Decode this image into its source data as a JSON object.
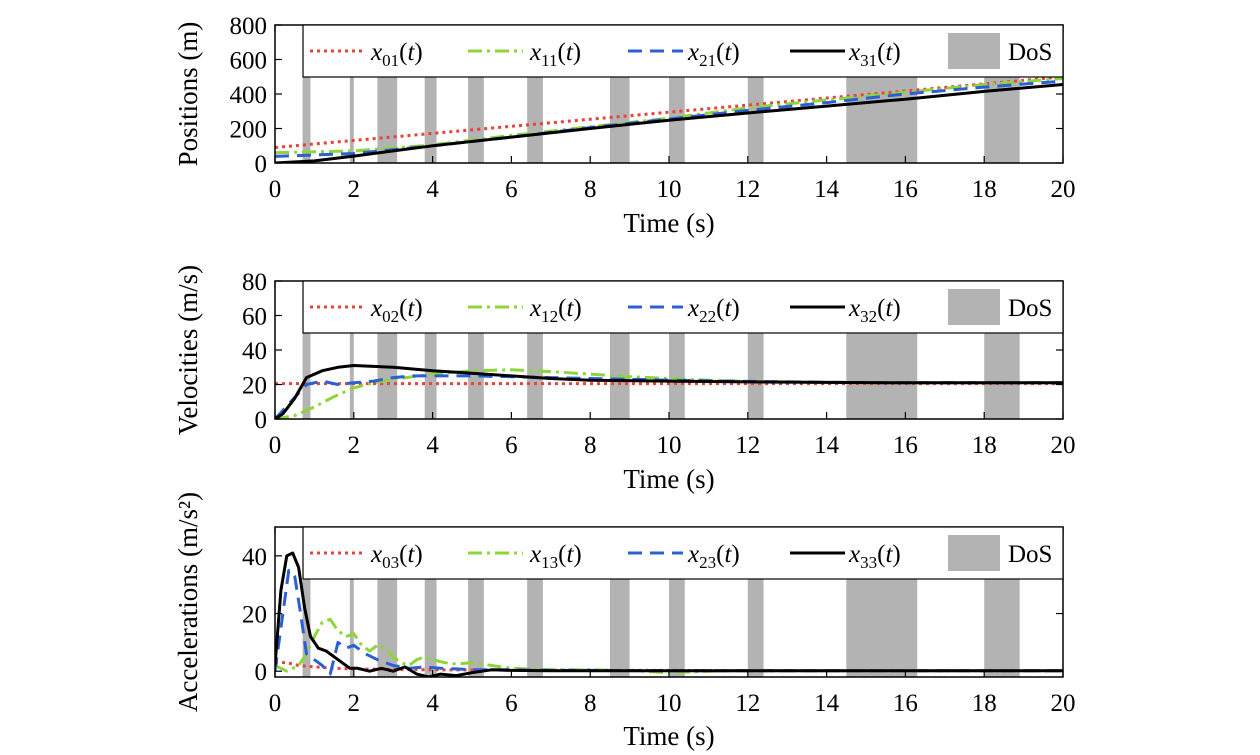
{
  "colors": {
    "x0": "#e8423c",
    "x1": "#8fd43a",
    "x2": "#2a5fd6",
    "x3": "#000000",
    "dos": "#b3b3b3"
  },
  "chart_data": [
    {
      "type": "line",
      "xlabel": "Time (s)",
      "ylabel": "Positions (m)",
      "xlim": [
        0,
        20
      ],
      "ylim": [
        0,
        800
      ],
      "xticks": [
        0,
        2,
        4,
        6,
        8,
        10,
        12,
        14,
        16,
        18,
        20
      ],
      "yticks": [
        0,
        200,
        400,
        600,
        800
      ],
      "dos_intervals": [
        [
          0.7,
          0.9
        ],
        [
          1.9,
          2.0
        ],
        [
          2.6,
          3.1
        ],
        [
          3.8,
          4.1
        ],
        [
          4.9,
          5.3
        ],
        [
          6.4,
          6.8
        ],
        [
          8.5,
          9.0
        ],
        [
          10.0,
          10.4
        ],
        [
          12.0,
          12.4
        ],
        [
          14.5,
          16.3
        ],
        [
          18.0,
          18.9
        ]
      ],
      "legend": [
        "x01(t)",
        "x11(t)",
        "x21(t)",
        "x31(t)",
        "DoS"
      ],
      "series": [
        {
          "name": "x01(t)",
          "x": [
            0,
            20
          ],
          "y": [
            90,
            500
          ]
        },
        {
          "name": "x11(t)",
          "x": [
            0,
            2,
            4,
            6,
            8,
            10,
            12,
            14,
            16,
            18,
            20
          ],
          "y": [
            60,
            70,
            105,
            160,
            210,
            260,
            320,
            365,
            410,
            455,
            490
          ]
        },
        {
          "name": "x21(t)",
          "x": [
            0,
            2,
            4,
            6,
            8,
            10,
            12,
            14,
            16,
            18,
            20
          ],
          "y": [
            38,
            55,
            100,
            150,
            205,
            255,
            305,
            350,
            400,
            440,
            475
          ]
        },
        {
          "name": "x31(t)",
          "x": [
            0,
            1,
            2,
            4,
            6,
            8,
            10,
            12,
            14,
            16,
            18,
            20
          ],
          "y": [
            0,
            12,
            40,
            100,
            150,
            200,
            248,
            290,
            330,
            370,
            415,
            455
          ]
        }
      ]
    },
    {
      "type": "line",
      "xlabel": "Time (s)",
      "ylabel": "Velocities (m/s)",
      "xlim": [
        0,
        20
      ],
      "ylim": [
        0,
        80
      ],
      "xticks": [
        0,
        2,
        4,
        6,
        8,
        10,
        12,
        14,
        16,
        18,
        20
      ],
      "yticks": [
        0,
        20,
        40,
        60,
        80
      ],
      "dos_intervals": [
        [
          0.7,
          0.9
        ],
        [
          1.9,
          2.0
        ],
        [
          2.6,
          3.1
        ],
        [
          3.8,
          4.1
        ],
        [
          4.9,
          5.3
        ],
        [
          6.4,
          6.8
        ],
        [
          8.5,
          9.0
        ],
        [
          10.0,
          10.4
        ],
        [
          12.0,
          12.4
        ],
        [
          14.5,
          16.3
        ],
        [
          18.0,
          18.9
        ]
      ],
      "legend": [
        "x02(t)",
        "x12(t)",
        "x22(t)",
        "x32(t)",
        "DoS"
      ],
      "series": [
        {
          "name": "x02(t)",
          "x": [
            0,
            20
          ],
          "y": [
            20.5,
            20.5
          ]
        },
        {
          "name": "x12(t)",
          "x": [
            0,
            0.5,
            1,
            1.5,
            2,
            2.5,
            3,
            4,
            5,
            6,
            7,
            8,
            9,
            10,
            11,
            12,
            14,
            16,
            18,
            20
          ],
          "y": [
            0,
            2,
            7,
            13,
            18,
            21,
            23,
            26,
            28,
            28.5,
            27.5,
            26,
            24.5,
            23.5,
            22.5,
            21.8,
            21.2,
            21,
            21,
            21
          ]
        },
        {
          "name": "x22(t)",
          "x": [
            0,
            0.4,
            0.8,
            1.2,
            1.6,
            2,
            2.5,
            3,
            3.5,
            4,
            5,
            6,
            7,
            8,
            9,
            10,
            12,
            14,
            16,
            18,
            20
          ],
          "y": [
            0,
            10,
            20,
            22,
            20,
            21,
            22,
            24,
            25,
            25,
            25,
            24.5,
            24,
            23.5,
            23,
            22.5,
            21.8,
            21.3,
            21,
            21,
            21
          ]
        },
        {
          "name": "x32(t)",
          "x": [
            0,
            0.2,
            0.5,
            0.8,
            1.2,
            1.6,
            2,
            2.5,
            3,
            3.5,
            4,
            5,
            6,
            7,
            8,
            10,
            12,
            14,
            16,
            18,
            20
          ],
          "y": [
            0,
            3,
            12,
            24,
            28,
            30,
            31,
            30.5,
            30,
            29,
            28,
            26.5,
            25,
            23.5,
            22.5,
            22,
            21.5,
            21.2,
            21,
            21,
            21
          ]
        }
      ]
    },
    {
      "type": "line",
      "xlabel": "Time (s)",
      "ylabel": "Accelerations (m/s²)",
      "xlim": [
        0,
        20
      ],
      "ylim": [
        -2,
        50
      ],
      "xticks": [
        0,
        2,
        4,
        6,
        8,
        10,
        12,
        14,
        16,
        18,
        20
      ],
      "yticks": [
        0,
        20,
        40
      ],
      "dos_intervals": [
        [
          0.7,
          0.9
        ],
        [
          1.9,
          2.0
        ],
        [
          2.6,
          3.1
        ],
        [
          3.8,
          4.1
        ],
        [
          4.9,
          5.3
        ],
        [
          6.4,
          6.8
        ],
        [
          8.5,
          9.0
        ],
        [
          10.0,
          10.4
        ],
        [
          12.0,
          12.4
        ],
        [
          14.5,
          16.3
        ],
        [
          18.0,
          18.9
        ]
      ],
      "legend": [
        "x03(t)",
        "x13(t)",
        "x23(t)",
        "x33(t)",
        "DoS"
      ],
      "series": [
        {
          "name": "x03(t)",
          "x": [
            0,
            0.3,
            0.6,
            1,
            1.5,
            2,
            3,
            4,
            6,
            8,
            10,
            12,
            14,
            16,
            18,
            20
          ],
          "y": [
            3,
            3,
            2,
            1.5,
            1,
            0.8,
            0.6,
            0.5,
            0.4,
            0.3,
            0.3,
            0.2,
            0.2,
            0.2,
            0.2,
            0.2
          ]
        },
        {
          "name": "x13(t)",
          "x": [
            0,
            0.3,
            0.6,
            0.8,
            1.0,
            1.2,
            1.4,
            1.6,
            1.8,
            2.0,
            2.2,
            2.4,
            2.6,
            2.8,
            3.0,
            3.2,
            3.4,
            3.6,
            3.8,
            4.0,
            4.3,
            4.6,
            5.0,
            5.5,
            6,
            7,
            8,
            9,
            10,
            11,
            12,
            14,
            16,
            18,
            20
          ],
          "y": [
            2,
            0,
            2,
            6,
            12,
            17,
            18,
            14,
            12,
            13,
            9,
            7,
            9,
            8,
            5,
            3,
            2,
            4,
            5,
            4,
            3,
            2.5,
            3,
            2,
            1,
            0.5,
            0.5,
            0.3,
            -0.5,
            0,
            0.3,
            0.2,
            0.2,
            0.2,
            0.2
          ]
        },
        {
          "name": "x23(t)",
          "x": [
            0,
            0.2,
            0.35,
            0.5,
            0.65,
            0.8,
            1.0,
            1.2,
            1.4,
            1.6,
            1.8,
            2.0,
            2.3,
            2.6,
            3.0,
            3.4,
            3.8,
            4.2,
            4.6,
            5,
            6,
            7,
            8,
            10,
            12,
            14,
            16,
            18,
            20
          ],
          "y": [
            0,
            20,
            35,
            33,
            20,
            6,
            4,
            2,
            -1,
            10,
            8,
            9,
            6,
            4,
            2,
            1,
            1.5,
            1,
            0.8,
            0.5,
            0.5,
            0.3,
            0.3,
            0.2,
            0.2,
            0.2,
            0.2,
            0.2,
            0.2
          ]
        },
        {
          "name": "x33(t)",
          "x": [
            0,
            0.15,
            0.3,
            0.45,
            0.6,
            0.75,
            0.9,
            1.1,
            1.3,
            1.5,
            1.7,
            1.9,
            2.1,
            2.4,
            2.7,
            3.0,
            3.3,
            3.6,
            3.9,
            4.2,
            4.6,
            5.0,
            5.5,
            6,
            7,
            8,
            10,
            12,
            14,
            16,
            18,
            20
          ],
          "y": [
            2,
            28,
            40,
            41,
            36,
            22,
            12,
            8,
            7,
            5,
            3,
            1,
            1,
            0,
            1,
            0,
            1.5,
            -1,
            -2,
            -1,
            -1.5,
            -0.5,
            0.5,
            0.3,
            0.2,
            0.2,
            0.2,
            0.2,
            0.2,
            0.2,
            0.2,
            0.2
          ]
        }
      ]
    }
  ]
}
